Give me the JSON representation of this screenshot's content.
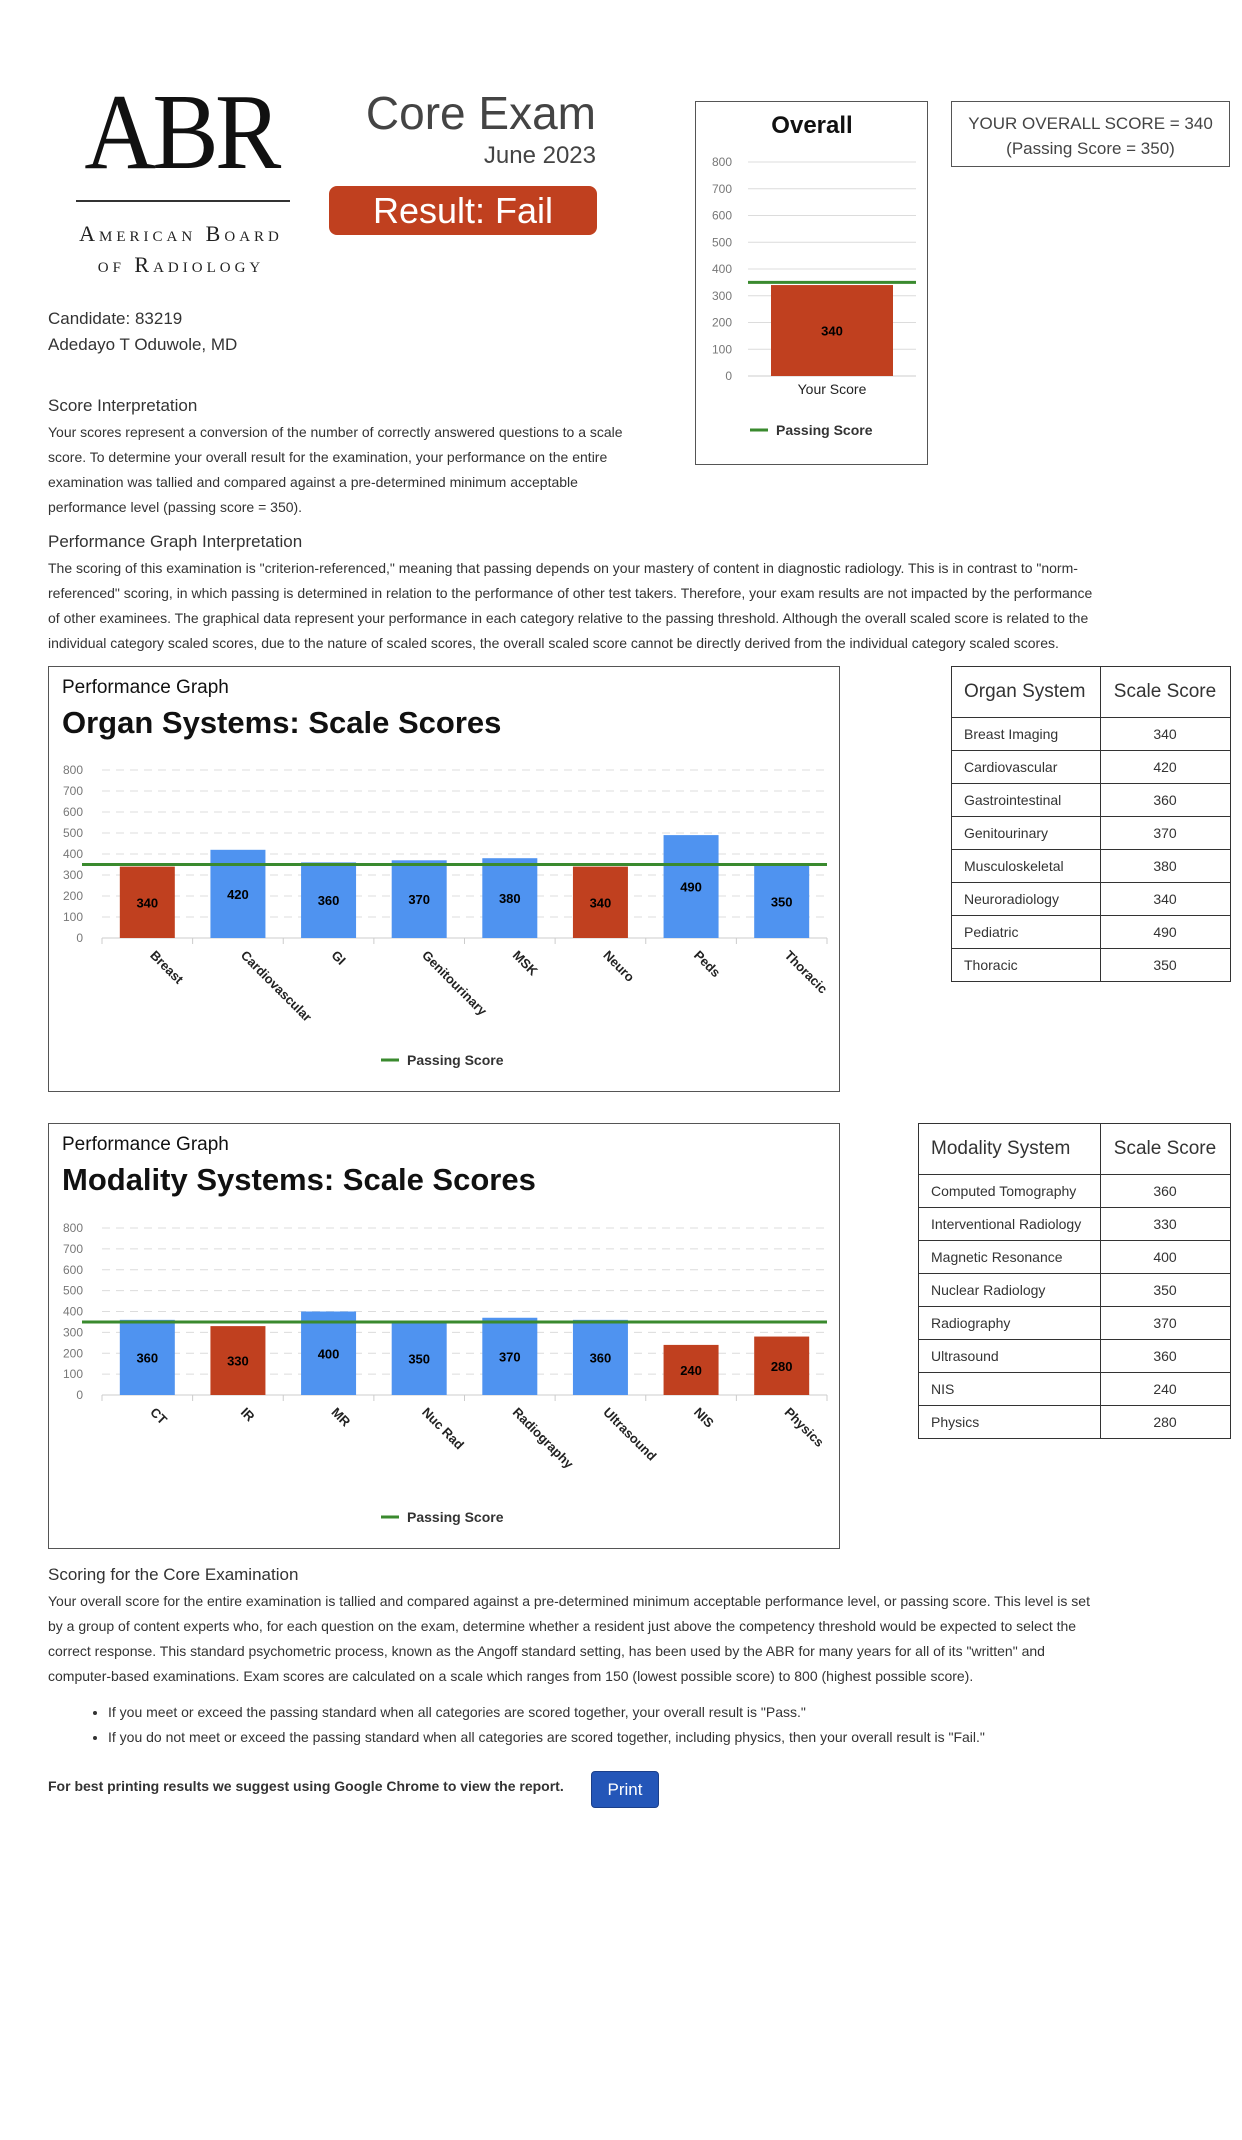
{
  "logo": {
    "mark": "ABR",
    "name_line1": "American Board",
    "name_line2": "of Radiology"
  },
  "header": {
    "title": "Core Exam",
    "date": "June 2023",
    "result": "Result: Fail"
  },
  "overall_score_box": {
    "line1": "YOUR OVERALL SCORE = 340",
    "line2": "(Passing Score = 350)"
  },
  "candidate": {
    "id_line": "Candidate: 83219",
    "name": "Adedayo T Oduwole, MD"
  },
  "score_interpretation": {
    "title": "Score Interpretation",
    "lines": [
      "Your scores represent a conversion of the number of correctly answered questions to a scale",
      "score. To determine your overall result for the examination, your performance on the entire",
      "examination was tallied and compared against a pre-determined minimum acceptable",
      "performance level (passing score = 350)."
    ]
  },
  "graph_interpretation": {
    "title": "Performance Graph Interpretation",
    "lines": [
      "The scoring of this examination is \"criterion-referenced,\" meaning that passing depends on your mastery of content in diagnostic radiology. This is in contrast to \"norm-",
      "referenced\" scoring, in which passing is determined in relation to the performance of other test takers. Therefore, your exam results are not impacted by the performance",
      "of other examinees. The graphical data represent your performance in each category relative to the passing threshold.  Although the overall scaled score is related to the",
      "individual category scaled scores, due to the nature of scaled scores, the overall scaled score cannot be directly derived from the individual category scaled scores."
    ]
  },
  "organ_graph": {
    "caption": "Performance Graph",
    "title": "Organ Systems: Scale Scores"
  },
  "modality_graph": {
    "caption": "Performance Graph",
    "title": "Modality Systems: Scale Scores"
  },
  "organ_table": {
    "headers": [
      "Organ System",
      "Scale Score"
    ],
    "rows": [
      [
        "Breast Imaging",
        "340"
      ],
      [
        "Cardiovascular",
        "420"
      ],
      [
        "Gastrointestinal",
        "360"
      ],
      [
        "Genitourinary",
        "370"
      ],
      [
        "Musculoskeletal",
        "380"
      ],
      [
        "Neuroradiology",
        "340"
      ],
      [
        "Pediatric",
        "490"
      ],
      [
        "Thoracic",
        "350"
      ]
    ]
  },
  "modality_table": {
    "headers": [
      "Modality System",
      "Scale Score"
    ],
    "rows": [
      [
        "Computed Tomography",
        "360"
      ],
      [
        "Interventional Radiology",
        "330"
      ],
      [
        "Magnetic Resonance",
        "400"
      ],
      [
        "Nuclear Radiology",
        "350"
      ],
      [
        "Radiography",
        "370"
      ],
      [
        "Ultrasound",
        "360"
      ],
      [
        "NIS",
        "240"
      ],
      [
        "Physics",
        "280"
      ]
    ]
  },
  "scoring": {
    "title": "Scoring for the Core Examination",
    "lines": [
      "Your overall score for the entire examination is tallied and compared against a pre-determined minimum acceptable performance level, or passing score. This level is set",
      "by a group of content experts who, for each question on the exam, determine whether a resident just above the competency threshold would be expected to select the",
      "correct response. This standard psychometric process, known as the Angoff standard setting, has been used by the ABR for many years for all of its \"written\" and",
      "computer-based examinations. Exam scores are calculated on a scale which ranges from 150 (lowest possible score) to 800 (highest possible score)."
    ],
    "bullets": [
      "If you meet or exceed the passing standard when all categories are scored together, your overall result is \"Pass.\"",
      "If you do not meet or exceed the passing standard when all categories are scored together, including physics, then your overall result is \"Fail.\""
    ]
  },
  "footer": {
    "note": "For best printing results we suggest using Google Chrome to view the report.",
    "print_label": "Print"
  },
  "colors": {
    "fail": "#c0401f",
    "pass": "#4f93f0",
    "passing_line": "#3a8a2e"
  },
  "chart_data": [
    {
      "type": "bar",
      "title": "Overall",
      "categories": [
        "Your Score"
      ],
      "values": [
        340
      ],
      "ylim": [
        0,
        800
      ],
      "yticks": [
        0,
        100,
        200,
        300,
        400,
        500,
        600,
        700,
        800
      ],
      "reference_line": {
        "name": "Passing Score",
        "value": 350
      },
      "legend": "bottom"
    },
    {
      "type": "bar",
      "title": "Organ Systems: Scale Scores",
      "categories": [
        "Breast",
        "Cardiovascular",
        "GI",
        "Genitourinary",
        "MSK",
        "Neuro",
        "Peds",
        "Thoracic"
      ],
      "values": [
        340,
        420,
        360,
        370,
        380,
        340,
        490,
        350
      ],
      "ylim": [
        0,
        800
      ],
      "yticks": [
        0,
        100,
        200,
        300,
        400,
        500,
        600,
        700,
        800
      ],
      "reference_line": {
        "name": "Passing Score",
        "value": 350
      },
      "grid": true,
      "legend": "bottom"
    },
    {
      "type": "bar",
      "title": "Modality Systems: Scale Scores",
      "categories": [
        "CT",
        "IR",
        "MR",
        "Nuc Rad",
        "Radiography",
        "Ultrasound",
        "NIS",
        "Physics"
      ],
      "values": [
        360,
        330,
        400,
        350,
        370,
        360,
        240,
        280
      ],
      "ylim": [
        0,
        800
      ],
      "yticks": [
        0,
        100,
        200,
        300,
        400,
        500,
        600,
        700,
        800
      ],
      "reference_line": {
        "name": "Passing Score",
        "value": 350
      },
      "grid": true,
      "legend": "bottom"
    }
  ]
}
